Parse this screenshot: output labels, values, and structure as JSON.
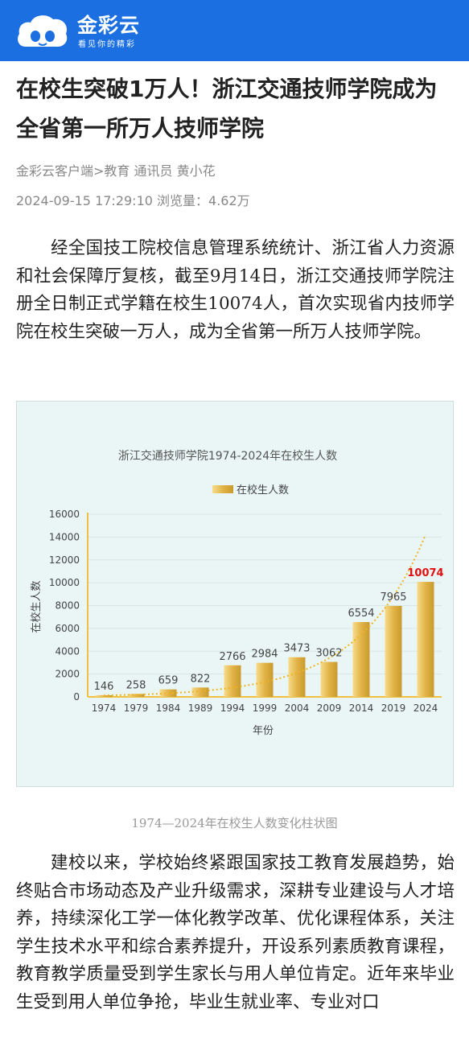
{
  "header": {
    "brand_name": "金彩云",
    "slogan": "看见你的精彩",
    "logo_icon": "cloud-face-icon",
    "colors": {
      "bar": "#1b6fe0",
      "text": "#ffffff"
    }
  },
  "article": {
    "title": "在校生突破1万人！浙江交通技师学院成为全省第一所万人技师学院",
    "source_line": "金彩云客户端>教育  通讯员  黄小花",
    "time_line": "2024-09-15  17:29:10  浏览量：4.62万",
    "paragraph1": "经全国技工院校信息管理系统统计、浙江省人力资源和社会保障厅复核，截至9月14日，浙江交通技师学院注册全日制正式学籍在校生10074人，首次实现省内技师学院在校生突破一万人，成为全省第一所万人技师学院。",
    "figure_caption": "1974—2024年在校生人数变化柱状图",
    "paragraph2": "建校以来，学校始终紧跟国家技工教育发展趋势，始终贴合市场动态及产业升级需求，深耕专业建设与人才培养，持续深化工学一体化教学改革、优化课程体系，关注学生技术水平和综合素养提升，开设系列素质教育课程，教育教学质量受到学生家长与用人单位肯定。近年来毕业生受到用人单位争抢，毕业生就业率、专业对口"
  },
  "chart_data": {
    "type": "bar",
    "title": "浙江交通技师学院1974-2024年在校生人数",
    "xlabel": "年份",
    "ylabel": "在校生人数",
    "categories": [
      "1974",
      "1979",
      "1984",
      "1989",
      "1994",
      "1999",
      "2004",
      "2009",
      "2014",
      "2019",
      "2024"
    ],
    "series": [
      {
        "name": "在校生人数",
        "values": [
          146,
          258,
          659,
          822,
          2766,
          2984,
          3473,
          3062,
          6554,
          7965,
          10074
        ]
      }
    ],
    "ylim": [
      0,
      16000
    ],
    "yticks": [
      0,
      2000,
      4000,
      6000,
      8000,
      10000,
      12000,
      14000,
      16000
    ],
    "grid": true,
    "legend": "top-center",
    "trendline": "dotted",
    "highlight": {
      "category": "2024",
      "color": "#e01010"
    },
    "colors": {
      "bar": "#e2b347",
      "trend": "#f0b422",
      "axis": "#f0c040"
    }
  }
}
